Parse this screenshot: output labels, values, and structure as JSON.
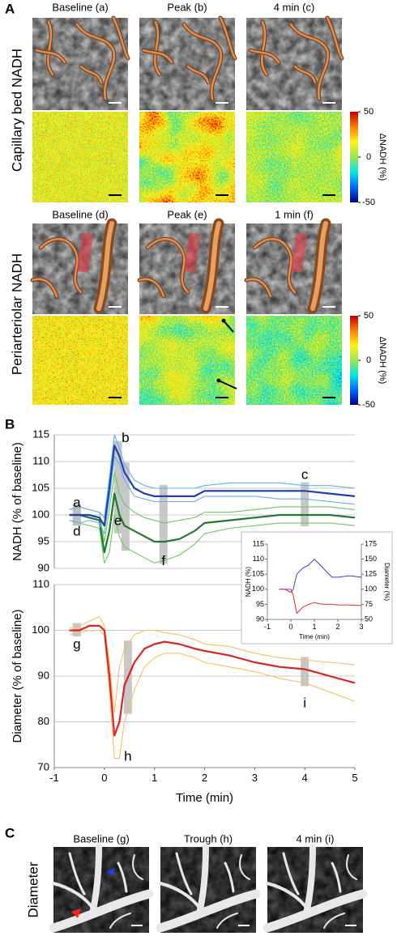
{
  "panel_a": {
    "letter": "A",
    "capillary": {
      "label": "Capillary bed NADH",
      "titles": [
        "Baseline (a)",
        "Peak (b)",
        "4 min (c)"
      ]
    },
    "periarteriolar": {
      "label": "Periarteriolar NADH",
      "titles": [
        "Baseline (d)",
        "Peak (e)",
        "1 min (f)"
      ]
    },
    "colorbars": [
      {
        "label": "ΔNADH (%)",
        "lim": [
          -50,
          50
        ],
        "ticks": [
          50,
          0,
          -50
        ]
      },
      {
        "label": "ΔNADH (%)",
        "lim": [
          -50,
          50
        ],
        "ticks": [
          50,
          0,
          -50
        ]
      }
    ]
  },
  "panel_b": {
    "letter": "B"
  },
  "panel_c": {
    "letter": "C",
    "label": "Diameter",
    "titles": [
      "Baseline (g)",
      "Trough (h)",
      "4 min (i)"
    ]
  },
  "chart_data": [
    {
      "type": "line",
      "ylabel": "NADH (% of baseline)",
      "x": [
        -0.7,
        -0.5,
        -0.3,
        -0.1,
        0,
        0.1,
        0.2,
        0.3,
        0.4,
        0.6,
        0.8,
        1,
        1.2,
        1.5,
        1.8,
        2,
        2.5,
        3,
        3.5,
        4,
        4.5,
        5
      ],
      "series": [
        {
          "color": "#66cc55",
          "values": [
            99,
            98.5,
            98,
            97.5,
            91,
            93,
            100,
            96,
            94,
            93,
            92,
            91,
            91.5,
            92.5,
            94.5,
            96.5,
            97.5,
            98,
            98.5,
            98.5,
            98.5,
            98
          ]
        },
        {
          "color": "#66cc55",
          "values": [
            101,
            101.5,
            101,
            100.5,
            95,
            101,
            108,
            104,
            102,
            100.5,
            99.5,
            99,
            98.5,
            99,
            99.5,
            100.5,
            100.5,
            101,
            101.5,
            101.5,
            101.5,
            101
          ]
        },
        {
          "color": "#1e7a2e",
          "values": [
            100,
            100,
            99.5,
            99,
            93,
            97,
            104,
            100,
            98,
            97,
            96,
            95,
            95,
            95.5,
            97,
            98.5,
            99,
            99.5,
            100,
            100,
            100,
            99.5
          ]
        },
        {
          "color": "#5fb0f0",
          "values": [
            99,
            98.5,
            99,
            98.5,
            96.5,
            103,
            111,
            109.5,
            106.5,
            103.5,
            103,
            102.5,
            102.5,
            102.5,
            102.5,
            103.5,
            103.5,
            103.5,
            103,
            103,
            102.5,
            102
          ]
        },
        {
          "color": "#5fb0f0",
          "values": [
            101,
            101.5,
            101,
            100.5,
            99.5,
            107,
            115,
            112.5,
            109.5,
            106.5,
            105.5,
            105,
            105,
            105,
            105,
            105.5,
            106,
            106,
            106,
            105.5,
            105.5,
            105
          ]
        },
        {
          "color": "#1f3fb0",
          "values": [
            100,
            100,
            100,
            99.5,
            98,
            105,
            113,
            111,
            108,
            105,
            104,
            103.5,
            103.5,
            103.5,
            103.5,
            104.5,
            104.5,
            104.5,
            104.5,
            104.5,
            104,
            103.5
          ]
        }
      ],
      "xlim": [
        -1,
        5
      ],
      "ylim": [
        90,
        115
      ],
      "yticks": [
        90,
        95,
        100,
        105,
        110,
        115
      ],
      "grid": true,
      "annotations": [
        {
          "label": "a",
          "x": -0.55,
          "y": 102.2
        },
        {
          "label": "d",
          "x": -0.55,
          "y": 96.8
        },
        {
          "label": "b",
          "x": 0.42,
          "y": 114.3
        },
        {
          "label": "e",
          "x": 0.27,
          "y": 98.8
        },
        {
          "label": "c",
          "x": 4,
          "y": 107.4
        },
        {
          "label": "f",
          "x": 1.18,
          "y": 91.3
        }
      ]
    },
    {
      "type": "line",
      "ylabel": "Diameter (% of baseline)",
      "xlabel": "Time (min)",
      "x": [
        -0.7,
        -0.5,
        -0.3,
        -0.1,
        0,
        0.1,
        0.2,
        0.3,
        0.4,
        0.6,
        0.8,
        1,
        1.2,
        1.5,
        1.8,
        2,
        2.5,
        3,
        3.5,
        4,
        4.5,
        5
      ],
      "series": [
        {
          "color": "#f5c060",
          "values": [
            100.5,
            101,
            102,
            103,
            101,
            93,
            82,
            92,
            96,
            99,
            100,
            100,
            99.5,
            99,
            98,
            97,
            96.5,
            95,
            94,
            93.5,
            93,
            92.5
          ]
        },
        {
          "color": "#f5c060",
          "values": [
            99,
            99.5,
            100,
            100,
            99,
            87,
            72,
            72,
            80,
            87,
            92,
            94,
            95,
            95,
            94,
            93,
            92,
            91,
            89.5,
            88.5,
            86.5,
            84.5
          ]
        },
        {
          "color": "#e02020",
          "values": [
            100,
            100,
            101,
            101,
            100,
            90,
            77,
            80,
            88,
            93,
            96,
            97,
            97.5,
            97,
            96,
            95.5,
            94.5,
            93,
            92,
            91.5,
            90,
            88.5
          ]
        }
      ],
      "xlim": [
        -1,
        5
      ],
      "xticks": [
        -1,
        0,
        1,
        2,
        3,
        4,
        5
      ],
      "ylim": [
        70,
        110
      ],
      "yticks": [
        70,
        80,
        90,
        100,
        110
      ],
      "grid": true,
      "annotations": [
        {
          "label": "g",
          "x": -0.55,
          "y": 96.8
        },
        {
          "label": "h",
          "x": 0.47,
          "y": 72.3
        },
        {
          "label": "i",
          "x": 4,
          "y": 84
        }
      ]
    },
    {
      "type": "line",
      "ylabel": "NADH (%)",
      "y2label": "Diameter (%)",
      "xlabel": "Time (min)",
      "x": [
        -0.5,
        -0.25,
        0,
        0.1,
        0.25,
        0.5,
        0.75,
        1,
        1.25,
        1.5,
        1.75,
        2,
        2.5,
        3
      ],
      "series": [
        {
          "color": "#3b3bd0",
          "values": [
            100,
            100,
            99,
            100,
            105,
            107,
            108,
            110,
            108,
            106,
            104,
            104,
            104.5,
            104
          ]
        },
        {
          "color": "#e03030",
          "axis": "y2",
          "values": [
            100,
            100,
            100,
            90,
            60,
            70,
            75,
            78,
            76,
            75,
            75,
            74,
            74,
            73
          ]
        }
      ],
      "xlim": [
        -1,
        3
      ],
      "xticks": [
        -1,
        0,
        1,
        2,
        3
      ],
      "ylim": [
        90,
        115
      ],
      "yticks": [
        90,
        95,
        100,
        105,
        110,
        115
      ],
      "y2lim": [
        50,
        175
      ],
      "y2ticks": [
        50,
        75,
        100,
        125,
        150,
        175
      ],
      "grid": false
    }
  ]
}
